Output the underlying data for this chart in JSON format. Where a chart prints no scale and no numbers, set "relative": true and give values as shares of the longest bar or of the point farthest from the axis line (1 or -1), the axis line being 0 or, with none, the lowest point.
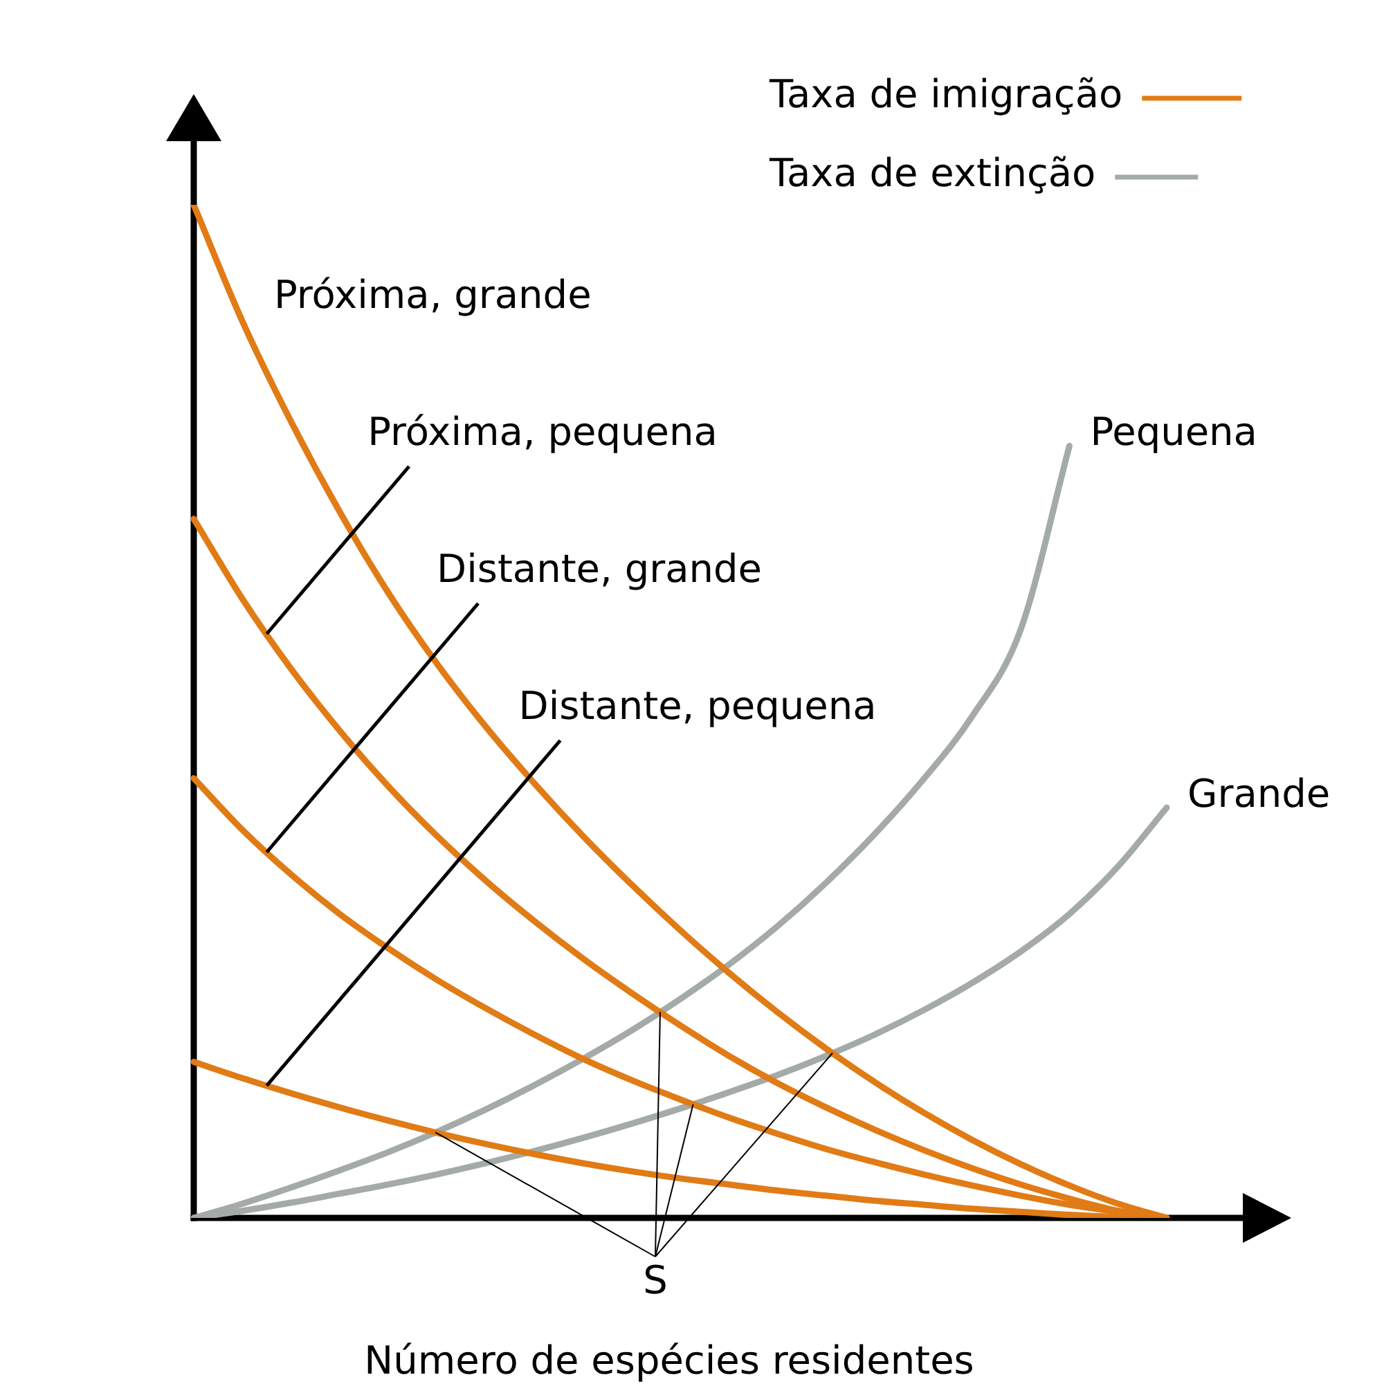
{
  "chart_data": {
    "type": "line",
    "relative": true,
    "xlabel": "Número de espécies residentes",
    "categories": [
      null,
      null,
      null,
      null,
      null,
      null,
      null,
      null,
      null,
      null,
      null,
      null,
      null,
      null,
      null,
      null,
      null,
      null,
      null,
      null,
      null
    ],
    "series": [
      {
        "name": "Próxima, grande",
        "color": "#e07b15",
        "values": [
          1,
          0.885,
          0.786,
          0.697,
          0.617,
          0.547,
          0.485,
          0.429,
          0.377,
          0.329,
          0.284,
          0.242,
          0.203,
          0.167,
          0.134,
          0.104,
          0.077,
          0.053,
          0.032,
          0.014,
          0
        ]
      },
      {
        "name": "Próxima, pequena",
        "color": "#e07b15",
        "values": [
          0.69,
          0.611,
          0.542,
          0.481,
          0.426,
          0.377,
          0.333,
          0.293,
          0.256,
          0.222,
          0.19,
          0.16,
          0.133,
          0.109,
          0.087,
          0.067,
          0.049,
          0.033,
          0.019,
          0.007,
          0
        ]
      },
      {
        "name": "Distante, grande",
        "color": "#e07b15",
        "values": [
          0.434,
          0.383,
          0.339,
          0.3,
          0.266,
          0.235,
          0.207,
          0.181,
          0.157,
          0.136,
          0.117,
          0.099,
          0.083,
          0.068,
          0.055,
          0.043,
          0.032,
          0.022,
          0.013,
          0.006,
          0
        ]
      },
      {
        "name": "Distante, pequena",
        "color": "#e07b15",
        "values": [
          0.154,
          0.138,
          0.123,
          0.109,
          0.096,
          0.084,
          0.073,
          0.063,
          0.054,
          0.046,
          0.039,
          0.033,
          0.027,
          0.022,
          0.017,
          0.013,
          0.009,
          0.006,
          0.003,
          0.001,
          0
        ]
      },
      {
        "name": "Pequena",
        "color": "#a4aaa8",
        "values": [
          0,
          0.014,
          0.03,
          0.047,
          0.065,
          0.085,
          0.107,
          0.131,
          0.157,
          0.185,
          0.216,
          0.25,
          0.288,
          0.331,
          0.379,
          0.433,
          0.495,
          0.581,
          0.762,
          null,
          null
        ]
      },
      {
        "name": "Grande",
        "color": "#a4aaa8",
        "values": [
          0,
          0.007,
          0.015,
          0.024,
          0.033,
          0.043,
          0.054,
          0.066,
          0.079,
          0.093,
          0.108,
          0.124,
          0.141,
          0.16,
          0.181,
          0.205,
          0.232,
          0.263,
          0.3,
          0.347,
          0.405
        ]
      }
    ],
    "annotations": [
      "Taxa de imigração",
      "Taxa de extinção",
      "S"
    ]
  }
}
